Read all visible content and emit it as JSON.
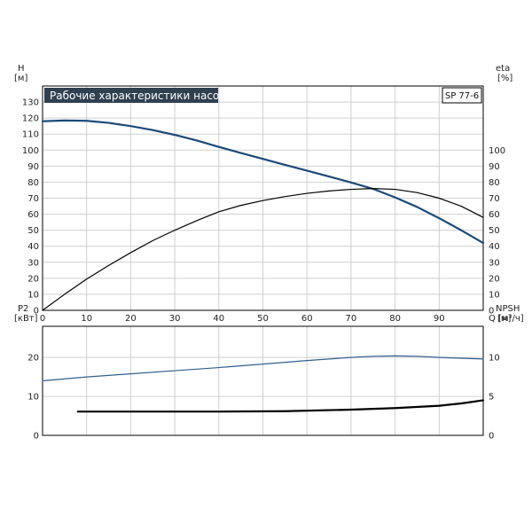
{
  "chart_data": [
    {
      "id": "performance",
      "type": "line",
      "title": "Рабочие характеристики насоса",
      "model": "SP 77-6",
      "title_bg": "#2f4050",
      "left_axis": {
        "label": "H",
        "unit": "[м]",
        "ticks": [
          0,
          10,
          20,
          30,
          40,
          50,
          60,
          70,
          80,
          90,
          100,
          110,
          120,
          130
        ],
        "ylim": [
          0,
          140
        ]
      },
      "right_axis": {
        "label": "eta",
        "unit": "[%]",
        "ticks": [
          0,
          10,
          20,
          30,
          40,
          50,
          60,
          70,
          80,
          90,
          100
        ],
        "ylim": [
          0,
          140
        ]
      },
      "x_axis": {
        "label": "Q [м³/ч]",
        "ticks": [
          0,
          10,
          20,
          30,
          40,
          50,
          60,
          70,
          80,
          90
        ],
        "xlim": [
          0,
          100
        ]
      },
      "grid": true,
      "series": [
        {
          "color": "#1a4a7a",
          "width": 2.2,
          "axis": "left",
          "x": [
            0,
            5,
            10,
            15,
            20,
            25,
            30,
            35,
            40,
            45,
            50,
            55,
            60,
            65,
            70,
            75,
            80,
            85,
            90,
            95,
            100
          ],
          "y": [
            118,
            118.5,
            118.3,
            117,
            115,
            112.5,
            109.5,
            106,
            102,
            98.2,
            94.5,
            90.8,
            87.2,
            83.5,
            79.8,
            75.8,
            70.5,
            64.5,
            57.5,
            50,
            42
          ]
        },
        {
          "color": "#000000",
          "width": 1.2,
          "axis": "right",
          "x": [
            0,
            5,
            10,
            15,
            20,
            25,
            30,
            35,
            40,
            45,
            50,
            55,
            60,
            65,
            70,
            75,
            80,
            85,
            90,
            95,
            100
          ],
          "y": [
            0,
            10,
            19.5,
            28,
            36,
            43.5,
            50,
            56,
            61.5,
            65.5,
            68.5,
            71,
            73,
            74.5,
            75.5,
            76,
            75.5,
            73.5,
            70,
            65,
            58
          ]
        }
      ]
    },
    {
      "id": "power-npsh",
      "type": "line",
      "left_axis": {
        "label": "P2",
        "unit": "[кВт]",
        "ticks": [
          0,
          10,
          20
        ],
        "ylim": [
          0,
          28
        ]
      },
      "right_axis": {
        "label": "NPSH",
        "unit": "[м]",
        "ticks": [
          0,
          5,
          10
        ],
        "ylim": [
          0,
          14
        ]
      },
      "x_axis": {
        "xlim": [
          0,
          100
        ],
        "ticks": [
          0,
          10,
          20,
          30,
          40,
          50,
          60,
          70,
          80,
          90
        ]
      },
      "grid": true,
      "series": [
        {
          "color": "#2f5f8f",
          "width": 1.2,
          "axis": "left",
          "x": [
            0,
            10,
            20,
            30,
            40,
            50,
            60,
            70,
            75,
            80,
            85,
            90,
            95,
            100
          ],
          "y": [
            14,
            15,
            15.8,
            16.6,
            17.4,
            18.3,
            19.2,
            20,
            20.3,
            20.4,
            20.3,
            20,
            19.8,
            19.6
          ]
        },
        {
          "color": "#000000",
          "width": 2.2,
          "axis": "right",
          "x": [
            8,
            20,
            40,
            55,
            70,
            80,
            90,
            95,
            100
          ],
          "y": [
            3.05,
            3.05,
            3.05,
            3.1,
            3.3,
            3.5,
            3.8,
            4.1,
            4.5
          ]
        }
      ]
    }
  ]
}
